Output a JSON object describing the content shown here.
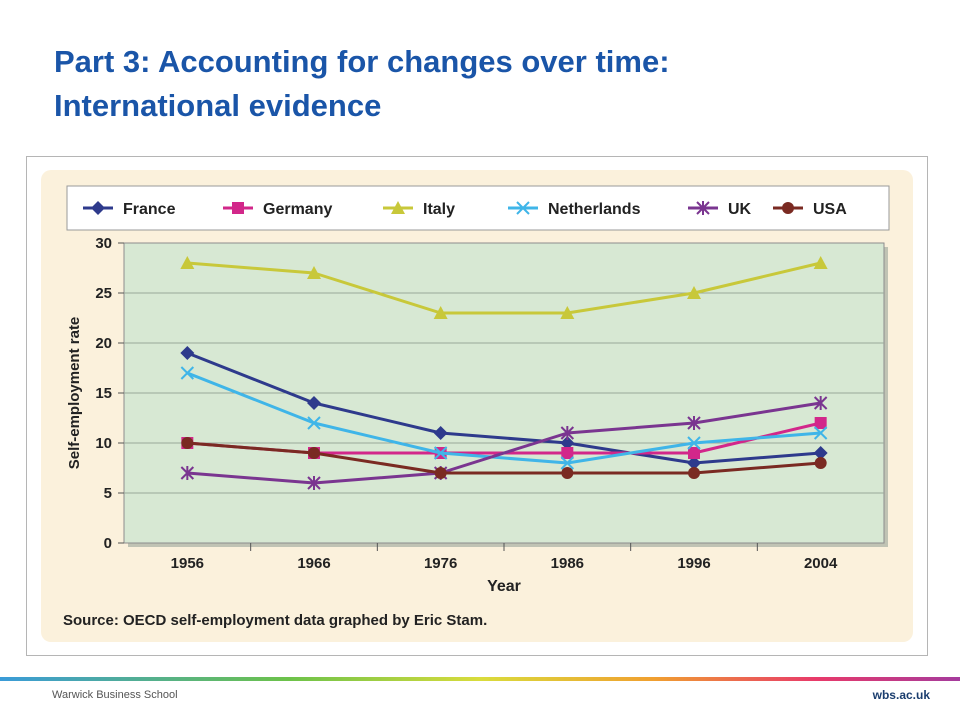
{
  "slide": {
    "title_line1": "Part 3: Accounting for changes over time:",
    "title_line2": "International evidence"
  },
  "footer": {
    "left": "Warwick Business School",
    "right": "wbs.ac.uk",
    "gradient_colors": [
      "#3a9bd8",
      "#6cc24a",
      "#d9dc3c",
      "#f0a030",
      "#e83a6a",
      "#a53b9d"
    ]
  },
  "chart_data": {
    "type": "line",
    "title": "",
    "xlabel": "Year",
    "ylabel": "Self-employment rate",
    "ylim": [
      0,
      30
    ],
    "yticks": [
      0,
      5,
      10,
      15,
      20,
      25,
      30
    ],
    "categories": [
      "1956",
      "1966",
      "1976",
      "1986",
      "1996",
      "2004"
    ],
    "grid": true,
    "legend_position": "top",
    "source": "Source: OECD self-employment data graphed by Eric Stam.",
    "colors": {
      "panel_background": "#fbf1dc",
      "plot_background": "#d7e8d3",
      "axis_text": "#222222"
    },
    "series": [
      {
        "name": "France",
        "marker": "diamond",
        "color": "#2e3a8c",
        "values": [
          19,
          14,
          11,
          10,
          8,
          9
        ]
      },
      {
        "name": "Germany",
        "marker": "square",
        "color": "#d2278a",
        "values": [
          10,
          9,
          9,
          9,
          9,
          12
        ]
      },
      {
        "name": "Italy",
        "marker": "triangle",
        "color": "#c8c83a",
        "values": [
          28,
          27,
          23,
          23,
          25,
          28
        ]
      },
      {
        "name": "Netherlands",
        "marker": "x",
        "color": "#3fb5e8",
        "values": [
          17,
          12,
          9,
          8,
          10,
          11
        ]
      },
      {
        "name": "UK",
        "marker": "star",
        "color": "#7a3590",
        "values": [
          7,
          6,
          7,
          11,
          12,
          14
        ]
      },
      {
        "name": "USA",
        "marker": "circle",
        "color": "#7a2a22",
        "values": [
          10,
          9,
          7,
          7,
          7,
          8
        ]
      }
    ]
  }
}
